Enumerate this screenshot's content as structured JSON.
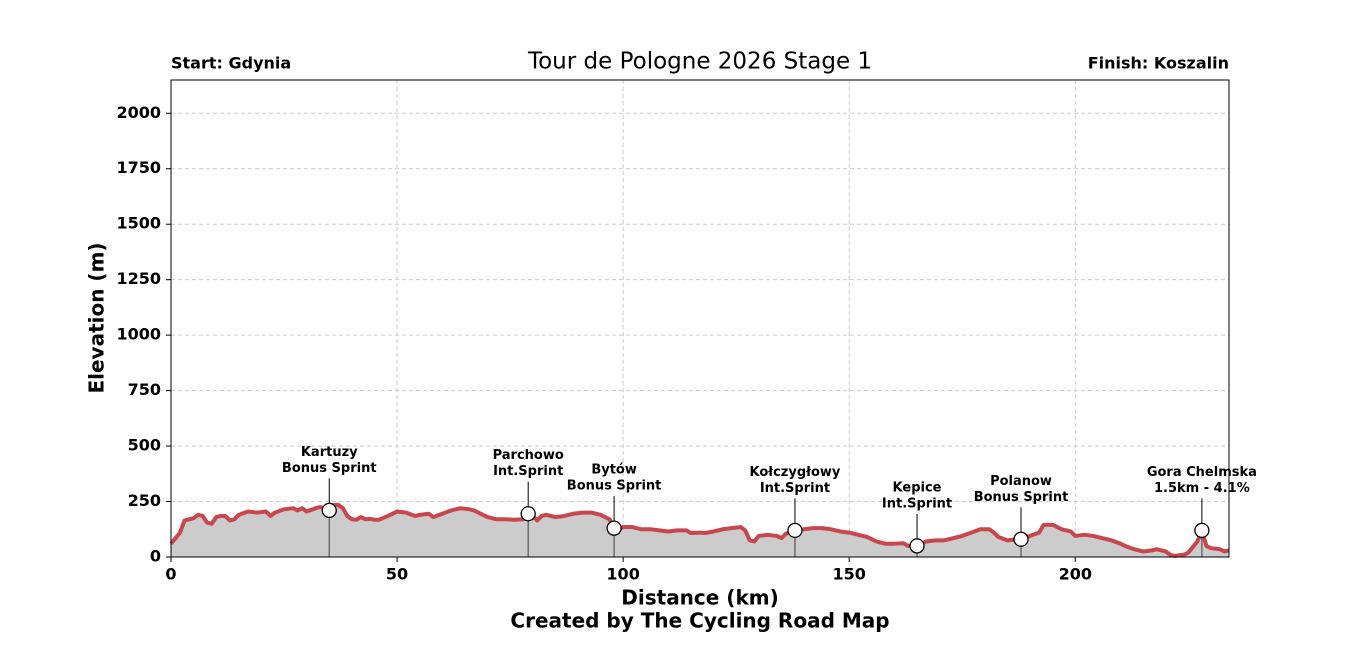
{
  "chart_data": {
    "type": "area",
    "title": "Tour de Pologne 2026 Stage 1",
    "start_label": "Start: Gdynia",
    "finish_label": "Finish: Koszalin",
    "xlabel": "Distance (km)",
    "ylabel": "Elevation (m)",
    "credit": "Created by The Cycling Road Map",
    "xlim": [
      0,
      234
    ],
    "ylim": [
      0,
      2150
    ],
    "xticks": [
      0,
      50,
      100,
      150,
      200
    ],
    "yticks": [
      0,
      250,
      500,
      750,
      1000,
      1250,
      1500,
      1750,
      2000
    ],
    "grid": true,
    "color": "#c8464c",
    "fill_color": "#cccccc",
    "x": [
      0,
      2,
      3,
      5,
      6,
      7,
      8,
      9,
      10,
      11,
      12,
      13,
      14,
      15,
      17,
      19,
      21,
      22,
      23,
      25,
      27,
      28,
      29,
      30,
      32,
      33,
      35,
      36,
      37,
      38,
      39,
      40,
      41,
      42,
      43,
      44,
      45,
      46,
      48,
      50,
      52,
      54,
      55,
      57,
      58,
      60,
      62,
      64,
      66,
      67,
      68,
      70,
      72,
      74,
      76,
      78,
      79,
      80,
      81,
      82,
      83,
      85,
      87,
      89,
      91,
      93,
      95,
      97,
      98,
      99,
      100,
      102,
      104,
      106,
      108,
      110,
      112,
      114,
      115,
      117,
      118,
      120,
      122,
      124,
      126,
      127,
      128,
      129,
      130,
      132,
      134,
      135,
      136,
      138,
      140,
      142,
      144,
      146,
      148,
      150,
      152,
      154,
      156,
      158,
      160,
      162,
      163,
      165,
      167,
      169,
      171,
      173,
      175,
      177,
      179,
      181,
      182,
      183,
      185,
      187,
      188,
      190,
      192,
      193,
      195,
      197,
      199,
      200,
      202,
      204,
      206,
      208,
      210,
      211,
      213,
      215,
      217,
      218,
      220,
      221,
      222,
      224,
      225,
      227,
      228,
      229,
      230,
      232,
      233,
      234
    ],
    "values": [
      60,
      110,
      165,
      175,
      190,
      185,
      155,
      150,
      180,
      185,
      185,
      165,
      170,
      190,
      205,
      200,
      205,
      185,
      200,
      215,
      220,
      210,
      220,
      205,
      220,
      225,
      215,
      235,
      235,
      220,
      185,
      170,
      168,
      180,
      170,
      172,
      168,
      168,
      185,
      205,
      200,
      185,
      190,
      195,
      180,
      195,
      210,
      220,
      215,
      210,
      200,
      180,
      170,
      170,
      168,
      170,
      195,
      185,
      165,
      185,
      190,
      180,
      185,
      195,
      200,
      200,
      190,
      170,
      130,
      125,
      135,
      135,
      125,
      125,
      120,
      115,
      120,
      120,
      108,
      110,
      108,
      115,
      125,
      130,
      135,
      120,
      75,
      70,
      95,
      100,
      95,
      85,
      105,
      120,
      125,
      130,
      130,
      125,
      115,
      110,
      100,
      90,
      70,
      60,
      60,
      62,
      50,
      50,
      70,
      75,
      75,
      85,
      95,
      110,
      125,
      125,
      110,
      90,
      75,
      80,
      85,
      95,
      110,
      145,
      145,
      125,
      115,
      95,
      100,
      95,
      85,
      75,
      60,
      50,
      35,
      25,
      30,
      35,
      25,
      10,
      5,
      10,
      20,
      70,
      120,
      50,
      40,
      35,
      25,
      30
    ],
    "annotations": [
      {
        "x": 35,
        "y": 210,
        "lines": [
          "Kartuzy",
          "Bonus Sprint"
        ]
      },
      {
        "x": 79,
        "y": 195,
        "lines": [
          "Parchowo",
          "Int.Sprint"
        ]
      },
      {
        "x": 98,
        "y": 130,
        "lines": [
          "Bytów",
          "Bonus Sprint"
        ]
      },
      {
        "x": 138,
        "y": 120,
        "lines": [
          "Kołczygłowy",
          "Int.Sprint"
        ]
      },
      {
        "x": 165,
        "y": 50,
        "lines": [
          "Kepice",
          "Int.Sprint"
        ]
      },
      {
        "x": 188,
        "y": 80,
        "lines": [
          "Polanow",
          "Bonus Sprint"
        ]
      },
      {
        "x": 228,
        "y": 120,
        "lines": [
          "Gora Chelmska",
          "1.5km - 4.1%"
        ]
      }
    ]
  }
}
